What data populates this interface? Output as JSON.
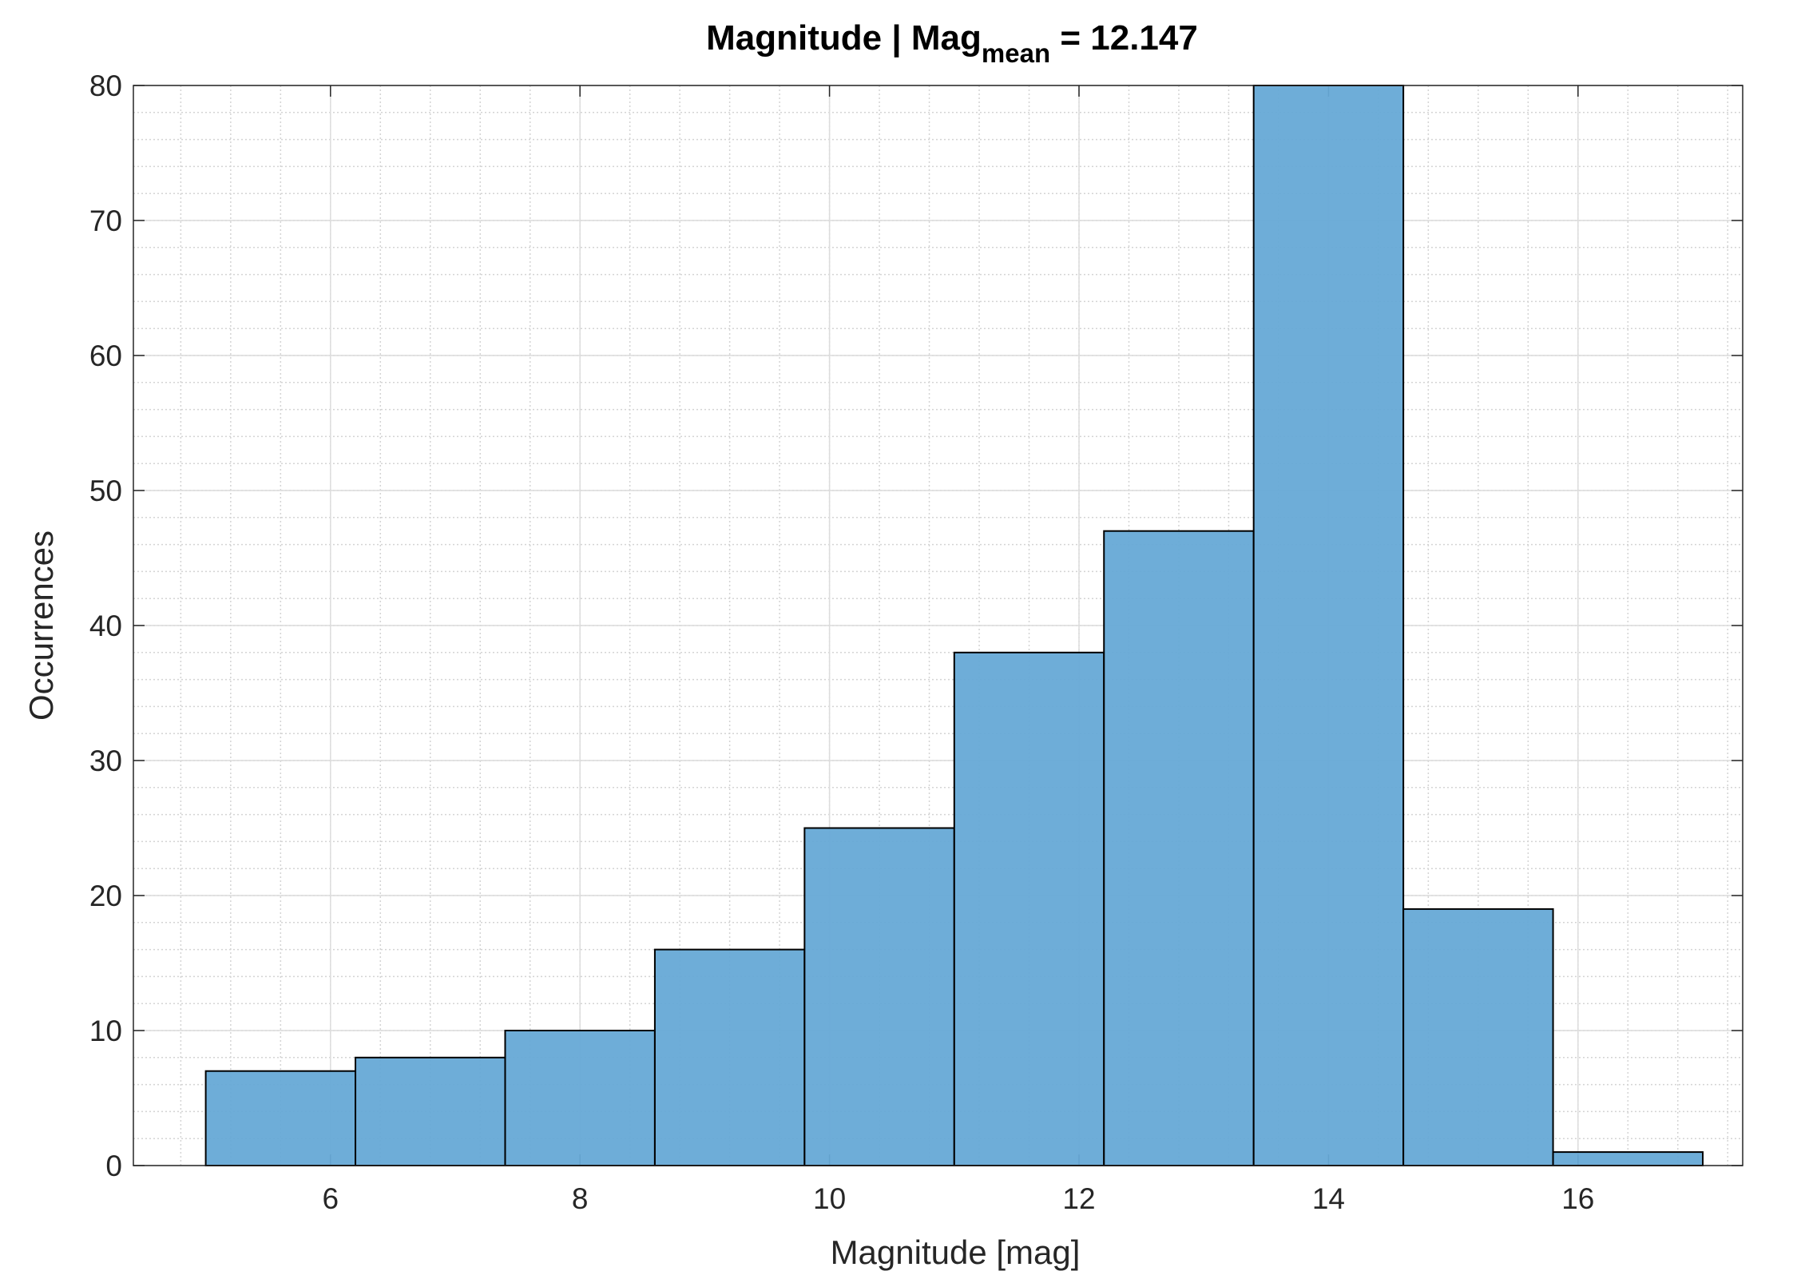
{
  "chart_data": {
    "type": "histogram",
    "title": {
      "main": "Magnitude | Mag",
      "subscript": "mean",
      "suffix": " = 12.147"
    },
    "x_label": "Magnitude [mag]",
    "y_label": "Occurrences",
    "bins": [
      5,
      6.2,
      7.4,
      8.6,
      9.8,
      11,
      12.2,
      13.4,
      14.6,
      15.8,
      17
    ],
    "counts": [
      7,
      8,
      10,
      16,
      25,
      38,
      47,
      80,
      19,
      1
    ],
    "color": "#66a9d6",
    "xlim": [
      4.42,
      17.32
    ],
    "ylim": [
      0,
      80
    ],
    "xticks": [
      6,
      8,
      10,
      12,
      14,
      16
    ],
    "yticks": [
      0,
      10,
      20,
      30,
      40,
      50,
      60,
      70,
      80
    ],
    "grid": true,
    "minor_grid": true
  }
}
